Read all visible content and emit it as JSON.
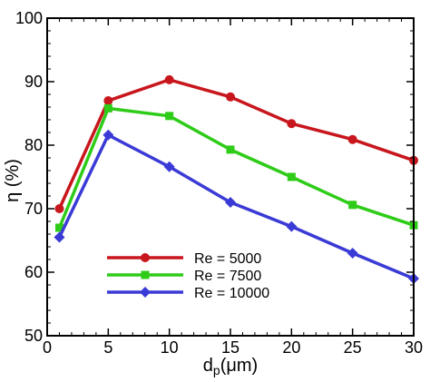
{
  "chart_data": {
    "type": "line",
    "xlabel": {
      "main": "d",
      "sub": "p",
      "rest": "(μm)"
    },
    "ylabel": "η (%)",
    "xlim": [
      0,
      30
    ],
    "ylim": [
      50,
      100
    ],
    "x_ticks": [
      0,
      5,
      10,
      15,
      20,
      25,
      30
    ],
    "y_ticks": [
      50,
      60,
      70,
      80,
      90,
      100
    ],
    "grid": false,
    "legend_position": "bottom-left",
    "x": [
      1,
      5,
      10,
      15,
      20,
      25,
      30
    ],
    "series": [
      {
        "name": "Re = 5000",
        "color": "#c8161d",
        "marker": "circle",
        "values": [
          70.0,
          87.0,
          90.3,
          87.6,
          83.4,
          80.9,
          77.6
        ]
      },
      {
        "name": "Re = 7500",
        "color": "#2ecc18",
        "marker": "square",
        "values": [
          67.0,
          85.8,
          84.6,
          79.3,
          75.0,
          70.6,
          67.4
        ]
      },
      {
        "name": "Re = 10000",
        "color": "#3a3ad6",
        "marker": "diamond",
        "values": [
          65.5,
          81.6,
          76.6,
          71.0,
          67.2,
          63.0,
          59.0
        ]
      }
    ]
  }
}
